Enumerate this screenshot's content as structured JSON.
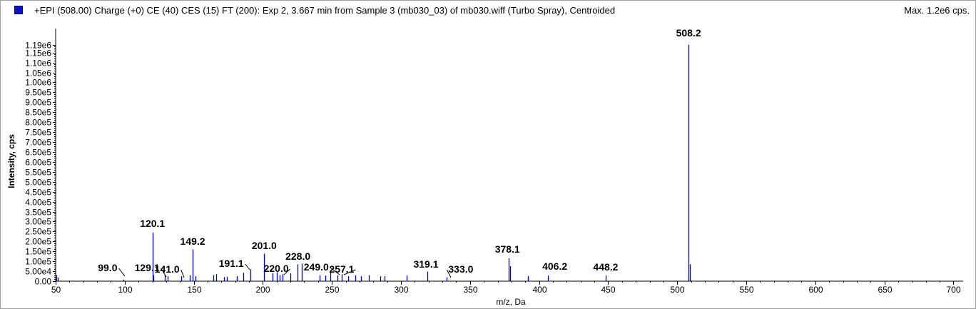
{
  "header": {
    "title": "+EPI (508.00) Charge (+0) CE (40) CES (15) FT (200): Exp 2, 3.667 min from Sample 3 (mb030_03) of mb030.wiff (Turbo Spray), Centroided",
    "max_label": "Max. 1.2e6 cps."
  },
  "colors": {
    "series": "#0000cc",
    "axis": "#000000",
    "leader": "#000000",
    "frame": "#a0a0a0"
  },
  "chart_data": {
    "type": "bar",
    "title": "+EPI (508.00) Charge (+0) CE (40) CES (15) FT (200): Exp 2, 3.667 min from Sample 3 (mb030_03) of mb030.wiff (Turbo Spray), Centroided",
    "xlabel": "m/z, Da",
    "ylabel": "Intensity, cps",
    "xlim": [
      50,
      707
    ],
    "ylim": [
      0,
      1210000
    ],
    "grid": false,
    "x_ticks": [
      50,
      100,
      150,
      200,
      250,
      300,
      350,
      400,
      450,
      500,
      550,
      600,
      650,
      700
    ],
    "x_tick_labels": [
      "50",
      "100",
      "150",
      "200",
      "250",
      "300",
      "350",
      "400",
      "450",
      "500",
      "550",
      "600",
      "650",
      "700"
    ],
    "y_ticks": [
      0,
      50000,
      100000,
      150000,
      200000,
      250000,
      300000,
      350000,
      400000,
      450000,
      500000,
      550000,
      600000,
      650000,
      700000,
      750000,
      800000,
      850000,
      900000,
      950000,
      1000000,
      1050000,
      1100000,
      1150000,
      1190000
    ],
    "y_tick_labels": [
      "0.00",
      "5.00e4",
      "1.00e5",
      "1.50e5",
      "2.00e5",
      "2.50e5",
      "3.00e5",
      "3.50e5",
      "4.00e5",
      "4.50e5",
      "5.00e5",
      "5.50e5",
      "6.00e5",
      "6.50e5",
      "7.00e5",
      "7.50e5",
      "8.00e5",
      "8.50e5",
      "9.00e5",
      "9.50e5",
      "1.00e6",
      "1.05e6",
      "1.10e6",
      "1.15e6",
      "1.19e6"
    ],
    "peaks": [
      [
        50.5,
        30000
      ],
      [
        51.3,
        18000
      ],
      [
        99.0,
        8000
      ],
      [
        120.1,
        245000
      ],
      [
        121.0,
        30000
      ],
      [
        129.1,
        30000
      ],
      [
        131.0,
        25000
      ],
      [
        141.0,
        25000
      ],
      [
        147.0,
        30000
      ],
      [
        149.2,
        160000
      ],
      [
        151.0,
        25000
      ],
      [
        164.0,
        30000
      ],
      [
        166.0,
        35000
      ],
      [
        172.0,
        20000
      ],
      [
        174.0,
        22000
      ],
      [
        181.0,
        25000
      ],
      [
        186.0,
        42000
      ],
      [
        191.1,
        60000
      ],
      [
        201.0,
        138000
      ],
      [
        207.0,
        40000
      ],
      [
        210.0,
        45000
      ],
      [
        212.0,
        30000
      ],
      [
        214.0,
        35000
      ],
      [
        220.0,
        40000
      ],
      [
        225.0,
        85000
      ],
      [
        228.0,
        88000
      ],
      [
        241.0,
        30000
      ],
      [
        245.0,
        28000
      ],
      [
        249.0,
        50000
      ],
      [
        254.0,
        30000
      ],
      [
        257.1,
        35000
      ],
      [
        262.0,
        25000
      ],
      [
        267.0,
        30000
      ],
      [
        271.0,
        25000
      ],
      [
        277.0,
        30000
      ],
      [
        285.0,
        25000
      ],
      [
        288.0,
        25000
      ],
      [
        304.0,
        28000
      ],
      [
        319.1,
        48000
      ],
      [
        333.0,
        20000
      ],
      [
        378.1,
        115000
      ],
      [
        379.0,
        75000
      ],
      [
        392.0,
        25000
      ],
      [
        406.2,
        28000
      ],
      [
        448.2,
        28000
      ],
      [
        508.2,
        1190000
      ],
      [
        509.2,
        85000
      ]
    ],
    "labels": [
      {
        "text": "99.0",
        "x": 99.0
      },
      {
        "text": "120.1",
        "x": 120.1
      },
      {
        "text": "129.1",
        "x": 129.1
      },
      {
        "text": "141.0",
        "x": 141.0
      },
      {
        "text": "149.2",
        "x": 149.2
      },
      {
        "text": "191.1",
        "x": 191.1
      },
      {
        "text": "201.0",
        "x": 201.0
      },
      {
        "text": "220.0",
        "x": 220.0
      },
      {
        "text": "228.0",
        "x": 228.0
      },
      {
        "text": "249.0",
        "x": 249.0
      },
      {
        "text": "257.1",
        "x": 257.1
      },
      {
        "text": "319.1",
        "x": 319.1
      },
      {
        "text": "333.0",
        "x": 333.0
      },
      {
        "text": "378.1",
        "x": 378.1
      },
      {
        "text": "406.2",
        "x": 406.2
      },
      {
        "text": "448.2",
        "x": 448.2
      },
      {
        "text": "508.2",
        "x": 508.2
      }
    ]
  }
}
